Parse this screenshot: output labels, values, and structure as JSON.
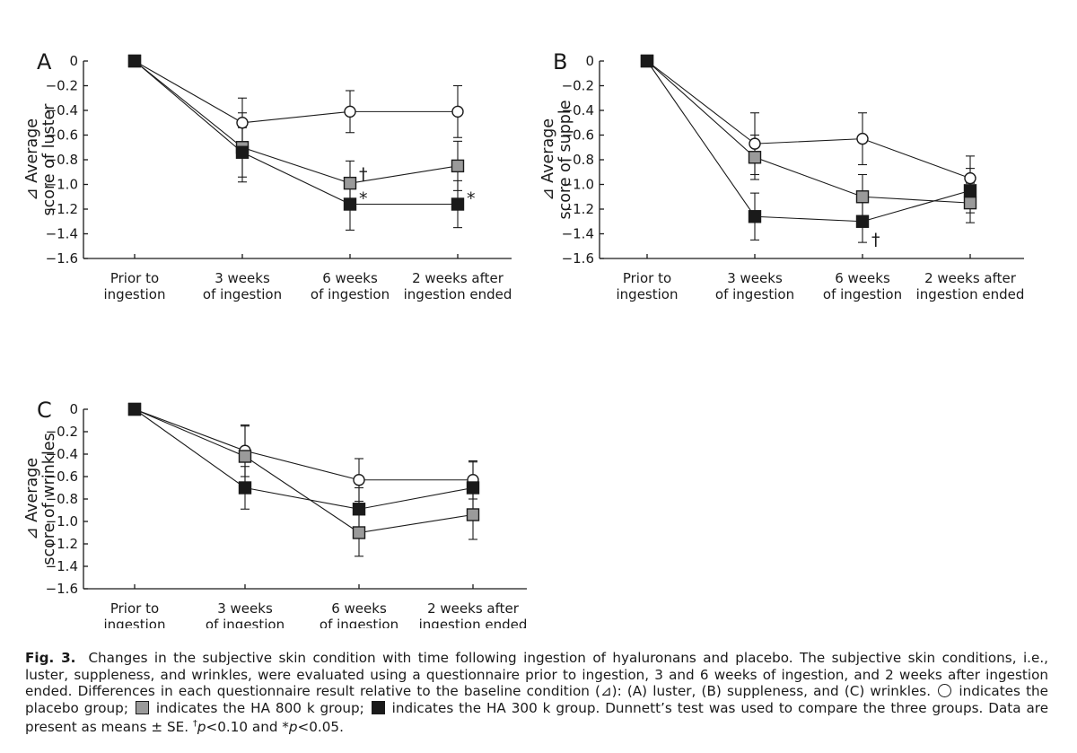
{
  "chart_data": [
    {
      "panel": "A",
      "type": "line",
      "ylabel": [
        "⊿ Average",
        "score of luster"
      ],
      "ylim": [
        -1.6,
        0
      ],
      "yticks": [
        "0",
        "−0.2",
        "−0.4",
        "−0.6",
        "−0.8",
        "−1.0",
        "−1.2",
        "−1.4",
        "−1.6"
      ],
      "categories": [
        [
          "Prior to",
          "ingestion"
        ],
        [
          "3 weeks",
          "of ingestion"
        ],
        [
          "6 weeks",
          "of ingestion"
        ],
        [
          "2 weeks after",
          "ingestion ended"
        ]
      ],
      "series": [
        {
          "name": "placebo",
          "marker": "circle",
          "values": [
            0,
            -0.5,
            -0.41,
            -0.41
          ],
          "se": [
            0,
            0.2,
            0.17,
            0.21
          ]
        },
        {
          "name": "HA 800 k",
          "marker": "gray",
          "values": [
            0,
            -0.7,
            -0.99,
            -0.85
          ],
          "se": [
            0,
            0.28,
            0.18,
            0.2
          ]
        },
        {
          "name": "HA 300 k",
          "marker": "black",
          "values": [
            0,
            -0.74,
            -1.16,
            -1.16
          ],
          "se": [
            0,
            0.2,
            0.21,
            0.19
          ]
        }
      ],
      "annotations": [
        {
          "text": "†",
          "category": 2,
          "y": -0.91
        },
        {
          "text": "*",
          "category": 2,
          "y": -1.11
        },
        {
          "text": "*",
          "category": 3,
          "y": -1.11
        }
      ]
    },
    {
      "panel": "B",
      "type": "line",
      "ylabel": [
        "⊿ Average",
        "score of supple"
      ],
      "ylim": [
        -1.6,
        0
      ],
      "yticks": [
        "0",
        "−0.2",
        "−0.4",
        "−0.6",
        "−0.8",
        "−1.0",
        "−1.2",
        "−1.4",
        "−1.6"
      ],
      "categories": [
        [
          "Prior to",
          "ingestion"
        ],
        [
          "3 weeks",
          "of ingestion"
        ],
        [
          "6 weeks",
          "of ingestion"
        ],
        [
          "2 weeks after",
          "ingestion ended"
        ]
      ],
      "series": [
        {
          "name": "placebo",
          "marker": "circle",
          "values": [
            0,
            -0.67,
            -0.63,
            -0.95
          ],
          "se": [
            0,
            0.25,
            0.21,
            0.18
          ]
        },
        {
          "name": "HA 800 k",
          "marker": "gray",
          "values": [
            0,
            -0.78,
            -1.1,
            -1.15
          ],
          "se": [
            0,
            0.18,
            0.18,
            0.16
          ]
        },
        {
          "name": "HA 300 k",
          "marker": "black",
          "values": [
            0,
            -1.26,
            -1.3,
            -1.05
          ],
          "se": [
            0,
            0.19,
            0.17,
            0.18
          ]
        }
      ],
      "annotations": [
        {
          "text": "†",
          "category": 2,
          "y": -1.44
        }
      ]
    },
    {
      "panel": "C",
      "type": "line",
      "ylabel": [
        "⊿ Average",
        "score of wrinkles"
      ],
      "ylim": [
        -1.6,
        0
      ],
      "yticks": [
        "0",
        "−0.2",
        "−0.4",
        "−0.6",
        "−0.8",
        "−1.0",
        "−1.2",
        "−1.4",
        "−1.6"
      ],
      "categories": [
        [
          "Prior to",
          "ingestion"
        ],
        [
          "3 weeks",
          "of ingestion"
        ],
        [
          "6 weeks",
          "of ingestion"
        ],
        [
          "2 weeks after",
          "ingestion ended"
        ]
      ],
      "series": [
        {
          "name": "placebo",
          "marker": "circle",
          "values": [
            0,
            -0.37,
            -0.63,
            -0.63
          ],
          "se": [
            0,
            0.23,
            0.19,
            0.17
          ]
        },
        {
          "name": "HA 800 k",
          "marker": "gray",
          "values": [
            0,
            -0.42,
            -1.1,
            -0.94
          ],
          "se": [
            0,
            0.27,
            0.21,
            0.22
          ]
        },
        {
          "name": "HA 300 k",
          "marker": "black",
          "values": [
            0,
            -0.7,
            -0.89,
            -0.7
          ],
          "se": [
            0,
            0.19,
            0.19,
            0.23
          ]
        }
      ],
      "annotations": []
    }
  ],
  "caption": {
    "label": "Fig. 3.",
    "part1": "Changes in the subjective skin condition with time following ingestion of hyaluronans and placebo. The subjective skin conditions, i.e., luster, suppleness, and wrinkles, were evaluated using a questionnaire prior to ingestion, 3 and 6 weeks of ingestion, and 2 weeks after ingestion ended. Differences in each questionnaire result relative to the baseline condition (⊿): (A) luster, (B) suppleness, and (C) wrinkles.",
    "part2": "indicates the placebo group;",
    "part3": "indicates the HA 800 k group;",
    "part4": "indicates the HA 300 k group. Dunnett’s test was used to compare the three groups. Data are present as means ± SE.",
    "dagger": "†",
    "p1": "p",
    "p1rest": "<0.10 and *",
    "p2": "p",
    "p2rest": "<0.05."
  }
}
